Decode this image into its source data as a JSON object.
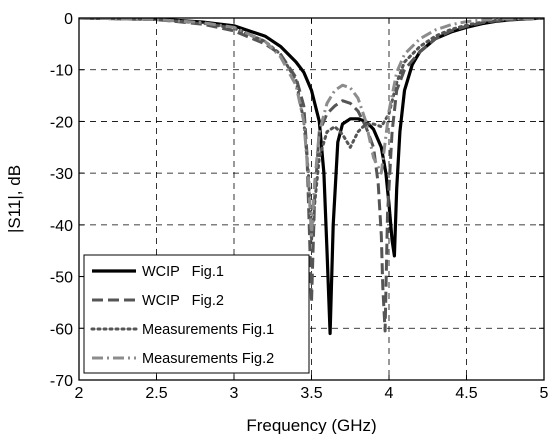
{
  "chart_data": {
    "type": "line",
    "xlabel": "Frequency (GHz)",
    "ylabel": "|S11|, dB",
    "xlim": [
      2,
      5
    ],
    "ylim": [
      -70,
      0
    ],
    "xticks": [
      2,
      2.5,
      3,
      3.5,
      4,
      4.5,
      5
    ],
    "yticks": [
      0,
      -10,
      -20,
      -30,
      -40,
      -50,
      -60,
      -70
    ],
    "grid": true,
    "legend_position": "bottom-left",
    "series": [
      {
        "name": "WCIP Fig.1",
        "color": "#000000",
        "style": "solid",
        "x": [
          2.0,
          2.5,
          2.8,
          3.0,
          3.2,
          3.3,
          3.4,
          3.45,
          3.5,
          3.55,
          3.58,
          3.6,
          3.62,
          3.64,
          3.67,
          3.7,
          3.75,
          3.8,
          3.85,
          3.9,
          3.95,
          3.98,
          4.0,
          4.02,
          4.035,
          4.05,
          4.07,
          4.1,
          4.15,
          4.2,
          4.3,
          4.4,
          4.5,
          4.6,
          4.7,
          4.8,
          5.0
        ],
        "y": [
          0.0,
          -0.2,
          -0.8,
          -1.5,
          -3.5,
          -5.5,
          -8.5,
          -10.5,
          -14.0,
          -20.0,
          -30.0,
          -45.0,
          -61.0,
          -40.0,
          -24.0,
          -20.5,
          -19.5,
          -19.5,
          -20.0,
          -21.5,
          -25.0,
          -30.0,
          -36.0,
          -43.0,
          -46.0,
          -33.0,
          -22.0,
          -14.0,
          -9.0,
          -6.5,
          -4.0,
          -2.7,
          -1.8,
          -1.1,
          -0.6,
          -0.3,
          0.0
        ]
      },
      {
        "name": "WCIP Fig.2",
        "color": "#555555",
        "style": "dashed",
        "x": [
          2.0,
          2.5,
          2.8,
          3.0,
          3.2,
          3.3,
          3.4,
          3.45,
          3.47,
          3.485,
          3.5,
          3.52,
          3.55,
          3.6,
          3.65,
          3.7,
          3.75,
          3.8,
          3.85,
          3.9,
          3.93,
          3.95,
          3.96,
          3.975,
          3.99,
          4.02,
          4.05,
          4.1,
          4.2,
          4.3,
          4.4,
          4.5,
          4.6,
          4.7,
          5.0
        ],
        "y": [
          0.0,
          -0.3,
          -1.2,
          -2.5,
          -5.0,
          -7.0,
          -11.5,
          -17.0,
          -26.0,
          -40.0,
          -55.0,
          -35.0,
          -22.0,
          -18.5,
          -17.0,
          -16.0,
          -16.5,
          -18.0,
          -21.0,
          -25.0,
          -32.0,
          -42.0,
          -52.0,
          -60.5,
          -38.0,
          -22.0,
          -14.0,
          -10.0,
          -6.5,
          -4.0,
          -2.5,
          -1.6,
          -0.9,
          -0.5,
          0.0
        ]
      },
      {
        "name": "Measurements Fig.1",
        "color": "#555555",
        "style": "dotted",
        "x": [
          2.0,
          2.5,
          2.8,
          3.0,
          3.2,
          3.3,
          3.4,
          3.45,
          3.48,
          3.5,
          3.52,
          3.55,
          3.6,
          3.65,
          3.7,
          3.75,
          3.8,
          3.85,
          3.9,
          3.95,
          4.0,
          4.05,
          4.1,
          4.2,
          4.3,
          4.4,
          4.5,
          4.6,
          4.7,
          5.0
        ],
        "y": [
          0.0,
          -0.3,
          -1.0,
          -2.0,
          -4.5,
          -7.0,
          -12.0,
          -20.0,
          -30.0,
          -43.0,
          -36.0,
          -27.0,
          -22.0,
          -21.0,
          -22.5,
          -25.0,
          -22.0,
          -20.5,
          -20.5,
          -21.0,
          -18.5,
          -12.5,
          -8.5,
          -5.5,
          -3.5,
          -2.2,
          -1.4,
          -0.8,
          -0.4,
          0.0
        ]
      },
      {
        "name": "Measurements Fig.2",
        "color": "#8c8c8c",
        "style": "dashdot",
        "x": [
          2.0,
          2.5,
          2.8,
          3.0,
          3.2,
          3.3,
          3.4,
          3.45,
          3.48,
          3.5,
          3.52,
          3.55,
          3.6,
          3.65,
          3.7,
          3.75,
          3.8,
          3.85,
          3.9,
          3.95,
          4.0,
          4.05,
          4.1,
          4.2,
          4.3,
          4.4,
          4.5,
          4.6,
          4.7,
          5.0
        ],
        "y": [
          0.0,
          -0.3,
          -0.9,
          -1.8,
          -4.5,
          -7.5,
          -13.0,
          -20.0,
          -31.0,
          -42.0,
          -32.0,
          -22.0,
          -16.5,
          -14.0,
          -13.0,
          -13.5,
          -15.5,
          -20.0,
          -27.0,
          -30.0,
          -18.0,
          -10.5,
          -7.0,
          -4.0,
          -2.3,
          -1.3,
          -0.7,
          -0.4,
          -0.2,
          0.0
        ]
      }
    ]
  }
}
